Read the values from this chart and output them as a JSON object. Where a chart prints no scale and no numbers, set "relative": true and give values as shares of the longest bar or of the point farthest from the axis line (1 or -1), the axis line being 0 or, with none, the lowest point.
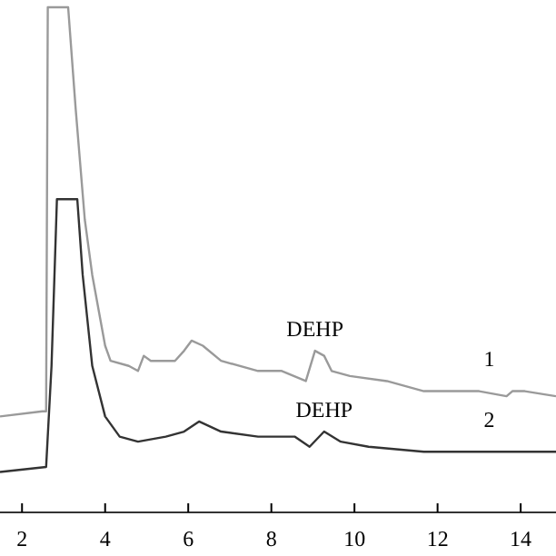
{
  "chart_data": {
    "type": "line",
    "relative": true,
    "xlim": [
      1.47,
      14.85
    ],
    "xticks": [
      2,
      4,
      6,
      8,
      10,
      12,
      14
    ],
    "series": [
      {
        "name": "1",
        "color": "#9a9a9a",
        "x": [
          1.47,
          2.49,
          2.58,
          2.62,
          3.11,
          3.29,
          3.51,
          3.69,
          4.0,
          4.13,
          4.57,
          4.79,
          4.93,
          5.1,
          5.68,
          5.9,
          6.08,
          6.35,
          6.79,
          7.68,
          8.25,
          8.83,
          9.05,
          9.27,
          9.45,
          9.89,
          10.78,
          11.67,
          13.0,
          13.66,
          13.8,
          14.1,
          14.85
        ],
        "values": [
          0.19,
          0.2,
          0.2,
          1.0,
          1.0,
          0.8,
          0.58,
          0.47,
          0.33,
          0.3,
          0.29,
          0.28,
          0.31,
          0.3,
          0.3,
          0.32,
          0.34,
          0.33,
          0.3,
          0.28,
          0.28,
          0.26,
          0.32,
          0.31,
          0.28,
          0.27,
          0.26,
          0.24,
          0.24,
          0.23,
          0.24,
          0.24,
          0.23
        ]
      },
      {
        "name": "2",
        "color": "#333333",
        "x": [
          1.47,
          2.58,
          2.71,
          2.84,
          3.33,
          3.46,
          3.69,
          4.0,
          4.35,
          4.79,
          5.46,
          5.9,
          6.26,
          6.79,
          7.68,
          8.56,
          8.92,
          9.27,
          9.67,
          10.34,
          11.67,
          14.85
        ],
        "values": [
          0.08,
          0.09,
          0.29,
          0.62,
          0.62,
          0.47,
          0.29,
          0.19,
          0.15,
          0.14,
          0.15,
          0.16,
          0.18,
          0.16,
          0.15,
          0.15,
          0.13,
          0.16,
          0.14,
          0.13,
          0.12,
          0.12
        ]
      }
    ],
    "annotations": [
      {
        "text": "DEHP",
        "x": 9.05,
        "y": 0.32
      },
      {
        "text": "DEHP",
        "x": 9.27,
        "y": 0.16
      }
    ]
  }
}
